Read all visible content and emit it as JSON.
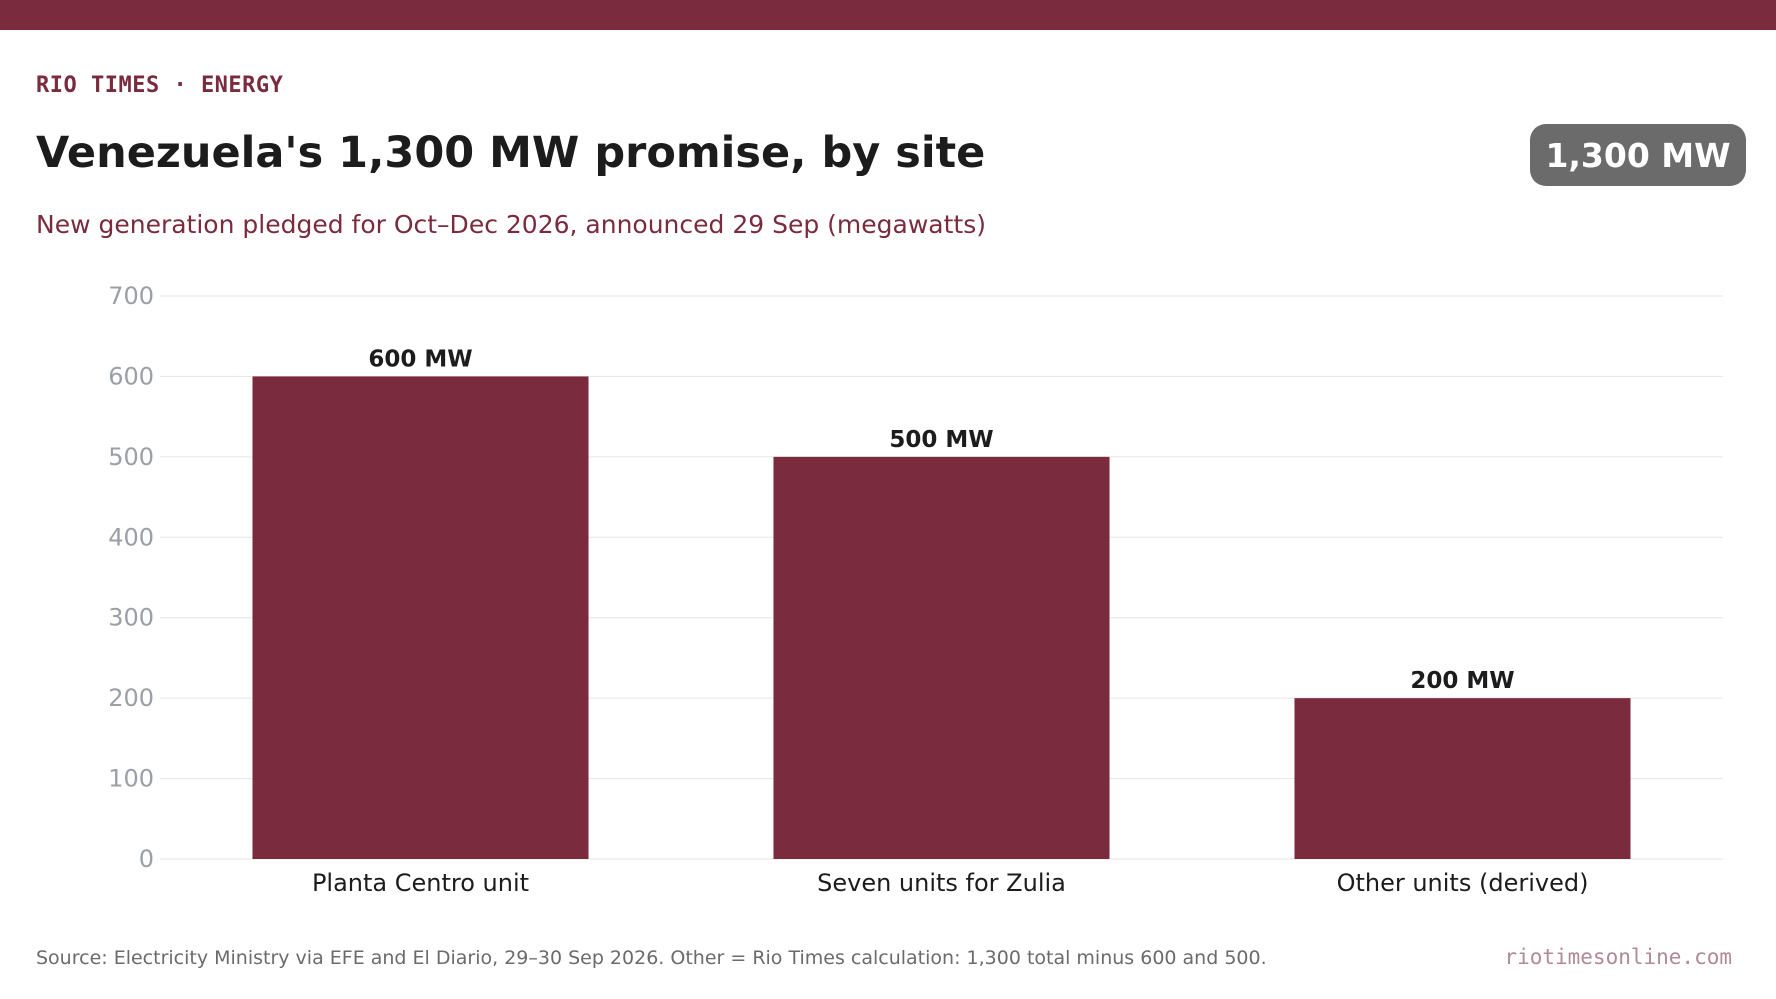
{
  "header": {
    "kicker": "RIO TIMES · ENERGY",
    "title": "Venezuela's 1,300 MW promise, by site",
    "subtitle": "New generation pledged for Oct–Dec 2026, announced 29 Sep (megawatts)",
    "badge": "1,300 MW"
  },
  "footer": {
    "source": "Source: Electricity Ministry via EFE and El Diario, 29–30 Sep 2026. Other = Rio Times calculation: 1,300 total minus 600 and 500.",
    "site": "riotimesonline.com"
  },
  "colors": {
    "accent": "#7a2c3e",
    "bar": "#7a2c3e",
    "badge": "#6b6b6b",
    "gridline": "#e6e6e6",
    "tick_label": "#9aa0a6"
  },
  "chart_data": {
    "type": "bar",
    "categories": [
      "Planta Centro unit",
      "Seven units for Zulia",
      "Other units (derived)"
    ],
    "values": [
      600,
      500,
      200
    ],
    "data_labels": [
      "600 MW",
      "500 MW",
      "200 MW"
    ],
    "yticks": [
      0,
      100,
      200,
      300,
      400,
      500,
      600,
      700
    ],
    "ylim": [
      0,
      700
    ],
    "xlabel": "",
    "ylabel": "",
    "grid": true
  }
}
